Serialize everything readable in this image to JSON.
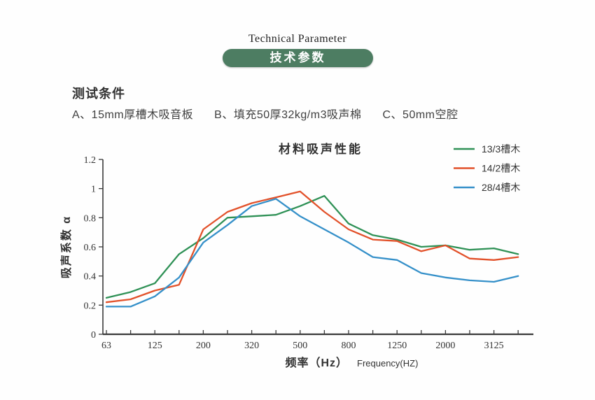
{
  "header": {
    "title_en": "Technical Parameter",
    "badge": "技术参数",
    "badge_color": "#4d7d62"
  },
  "conditions": {
    "heading": "测试条件",
    "items": [
      "A、15mm厚槽木吸音板",
      "B、填充50厚32kg/m3吸声棉",
      "C、50mm空腔"
    ]
  },
  "chart_data": {
    "type": "line",
    "title": "材料吸声性能",
    "ylabel": "吸声系数 α",
    "xlabel_cn": "频率（Hz）",
    "xlabel_en": "Frequency(HZ)",
    "ylim": [
      0,
      1.2
    ],
    "ytick_labels": [
      "0",
      "0.2",
      "0.4",
      "0.6",
      "0.8",
      "1",
      "1.2"
    ],
    "yticks": [
      0,
      0.2,
      0.4,
      0.6,
      0.8,
      1,
      1.2
    ],
    "grid": false,
    "legend_position": "top-right",
    "categories": [
      "63",
      "",
      "125",
      "",
      "200",
      "",
      "320",
      "",
      "500",
      "",
      "800",
      "",
      "1250",
      "",
      "2000",
      "",
      "3125",
      ""
    ],
    "series": [
      {
        "name": "13/3槽木",
        "color": "#2f9156",
        "values": [
          0.25,
          0.29,
          0.35,
          0.55,
          0.66,
          0.8,
          0.81,
          0.82,
          0.88,
          0.95,
          0.76,
          0.68,
          0.65,
          0.6,
          0.61,
          0.58,
          0.59,
          0.55
        ]
      },
      {
        "name": "14/2槽木",
        "color": "#e2512a",
        "values": [
          0.22,
          0.24,
          0.3,
          0.34,
          0.72,
          0.84,
          0.9,
          0.94,
          0.98,
          0.84,
          0.72,
          0.65,
          0.64,
          0.57,
          0.61,
          0.52,
          0.51,
          0.53
        ]
      },
      {
        "name": "28/4槽木",
        "color": "#3590c9",
        "values": [
          0.19,
          0.19,
          0.26,
          0.39,
          0.63,
          0.75,
          0.88,
          0.93,
          0.81,
          0.72,
          0.63,
          0.53,
          0.51,
          0.42,
          0.39,
          0.37,
          0.36,
          0.4
        ]
      }
    ],
    "axis_color": "#3a3a3a",
    "text_color": "#333333"
  }
}
